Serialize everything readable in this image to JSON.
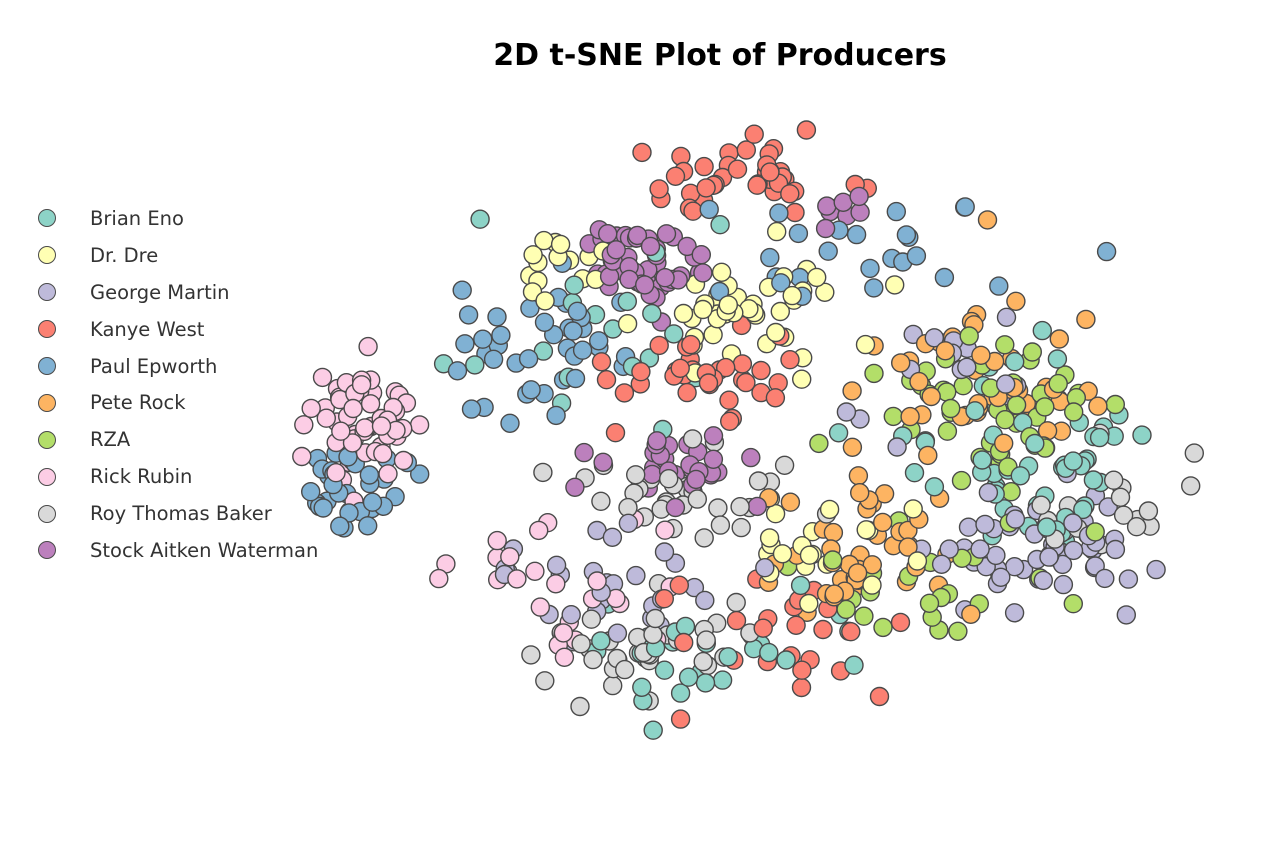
{
  "chart_data": {
    "type": "scatter",
    "title": "2D t-SNE Plot of Producers",
    "xlabel": "",
    "ylabel": "",
    "xlim": [
      -100,
      100
    ],
    "ylim": [
      -100,
      100
    ],
    "grid": false,
    "legend_placement": "left",
    "series": [
      {
        "name": "Brian Eno",
        "color": "#8dd3c7"
      },
      {
        "name": "Dr. Dre",
        "color": "#ffffb3"
      },
      {
        "name": "George Martin",
        "color": "#bebada"
      },
      {
        "name": "Kanye West",
        "color": "#fb8072"
      },
      {
        "name": "Paul Epworth",
        "color": "#80b1d3"
      },
      {
        "name": "Pete Rock",
        "color": "#fdb462"
      },
      {
        "name": "RZA",
        "color": "#b3de69"
      },
      {
        "name": "Rick Rubin",
        "color": "#fccde5"
      },
      {
        "name": "Roy Thomas Baker",
        "color": "#d9d9d9"
      },
      {
        "name": "Stock Aitken Waterman",
        "color": "#bc80bd"
      }
    ],
    "points_note": "",
    "clusters": [
      {
        "series": 0,
        "cx": 62,
        "cy": -2,
        "sx": 22,
        "sy": 28,
        "n": 55
      },
      {
        "series": 0,
        "cx": -10,
        "cy": -60,
        "sx": 30,
        "sy": 14,
        "n": 30
      },
      {
        "series": 0,
        "cx": -40,
        "cy": 40,
        "sx": 30,
        "sy": 30,
        "n": 20
      },
      {
        "series": 1,
        "cx": 0,
        "cy": 42,
        "sx": 18,
        "sy": 14,
        "n": 45
      },
      {
        "series": 1,
        "cx": -40,
        "cy": 55,
        "sx": 10,
        "sy": 10,
        "n": 15
      },
      {
        "series": 1,
        "cx": 20,
        "cy": -30,
        "sx": 20,
        "sy": 18,
        "n": 20
      },
      {
        "series": 2,
        "cx": 65,
        "cy": -30,
        "sx": 22,
        "sy": 14,
        "n": 55
      },
      {
        "series": 2,
        "cx": -30,
        "cy": -40,
        "sx": 25,
        "sy": 20,
        "n": 30
      },
      {
        "series": 2,
        "cx": 40,
        "cy": 20,
        "sx": 25,
        "sy": 20,
        "n": 15
      },
      {
        "series": 3,
        "cx": 0,
        "cy": 80,
        "sx": 18,
        "sy": 12,
        "n": 40
      },
      {
        "series": 3,
        "cx": -10,
        "cy": 20,
        "sx": 22,
        "sy": 16,
        "n": 35
      },
      {
        "series": 3,
        "cx": 10,
        "cy": -50,
        "sx": 25,
        "sy": 20,
        "n": 25
      },
      {
        "series": 4,
        "cx": -88,
        "cy": -10,
        "sx": 10,
        "sy": 10,
        "n": 35
      },
      {
        "series": 4,
        "cx": -45,
        "cy": 30,
        "sx": 20,
        "sy": 20,
        "n": 40
      },
      {
        "series": 4,
        "cx": 30,
        "cy": 55,
        "sx": 35,
        "sy": 15,
        "n": 25
      },
      {
        "series": 5,
        "cx": 25,
        "cy": -30,
        "sx": 20,
        "sy": 22,
        "n": 45
      },
      {
        "series": 5,
        "cx": 55,
        "cy": 20,
        "sx": 22,
        "sy": 22,
        "n": 45
      },
      {
        "series": 6,
        "cx": 55,
        "cy": 12,
        "sx": 22,
        "sy": 22,
        "n": 50
      },
      {
        "series": 6,
        "cx": 40,
        "cy": -40,
        "sx": 25,
        "sy": 15,
        "n": 25
      },
      {
        "series": 7,
        "cx": -85,
        "cy": 5,
        "sx": 12,
        "sy": 16,
        "n": 55
      },
      {
        "series": 7,
        "cx": -40,
        "cy": -40,
        "sx": 25,
        "sy": 22,
        "n": 25
      },
      {
        "series": 8,
        "cx": -25,
        "cy": -60,
        "sx": 22,
        "sy": 14,
        "n": 35
      },
      {
        "series": 8,
        "cx": -15,
        "cy": -15,
        "sx": 20,
        "sy": 12,
        "n": 35
      },
      {
        "series": 8,
        "cx": 75,
        "cy": -20,
        "sx": 15,
        "sy": 18,
        "n": 20
      },
      {
        "series": 9,
        "cx": -22,
        "cy": 55,
        "sx": 10,
        "sy": 12,
        "n": 50
      },
      {
        "series": 9,
        "cx": -15,
        "cy": -5,
        "sx": 18,
        "sy": 10,
        "n": 30
      },
      {
        "series": 9,
        "cx": 20,
        "cy": 70,
        "sx": 8,
        "sy": 4,
        "n": 8
      }
    ]
  }
}
